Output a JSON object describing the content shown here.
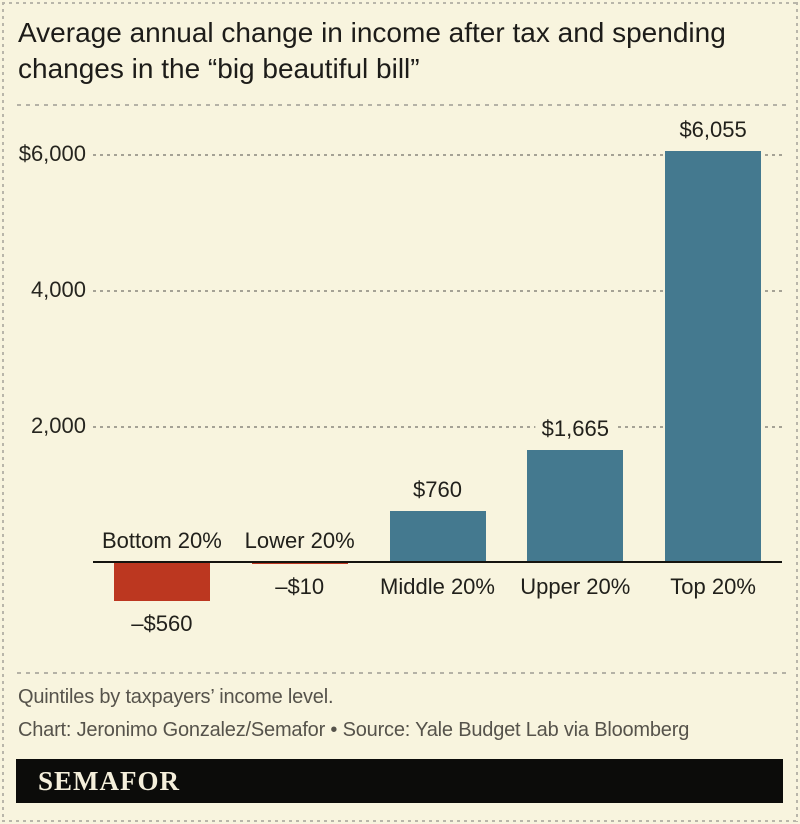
{
  "page": {
    "title_line1": "Average annual change in income after tax and spending",
    "title_line2": "changes in the “big beautiful bill”"
  },
  "chart_data": {
    "type": "bar",
    "title": "Average annual change in income after tax and spending changes in the “big beautiful bill”",
    "categories": [
      "Bottom 20%",
      "Lower 20%",
      "Middle 20%",
      "Upper 20%",
      "Top 20%"
    ],
    "values": [
      -560,
      -10,
      760,
      1665,
      6055
    ],
    "value_labels": [
      "–$560",
      "–$10",
      "$760",
      "$1,665",
      "$6,055"
    ],
    "unit": "USD per year",
    "ylim": [
      -700,
      6600
    ],
    "gridlines": [
      {
        "value": 2000,
        "label": "2,000"
      },
      {
        "value": 4000,
        "label": "4,000"
      },
      {
        "value": 6000,
        "label": "$6,000"
      }
    ],
    "grid": "horizontal dashed",
    "legend": "none",
    "colors": {
      "positive_bar": "#44798f",
      "negative_bar": "#bc3720",
      "background": "#f8f4de"
    }
  },
  "footer": {
    "note": "Quintiles by taxpayers’ income level.",
    "credit": "Chart: Jeronimo Gonzalez/Semafor • Source: Yale Budget Lab via Bloomberg"
  },
  "brand": {
    "logo_text": "SEMAFOR"
  }
}
